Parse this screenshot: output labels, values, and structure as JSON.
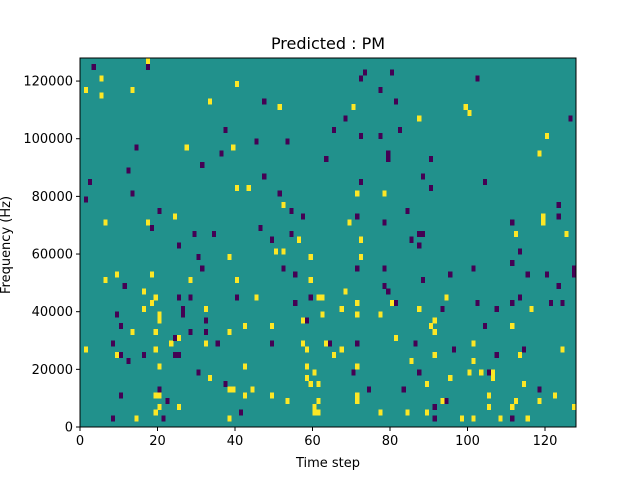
{
  "chart_data": {
    "type": "heatmap",
    "title": "Predicted : PM",
    "xlabel": "Time step",
    "ylabel": "Frequency (Hz)",
    "xlim": [
      0,
      128
    ],
    "ylim": [
      0,
      128000
    ],
    "xticks": [
      0,
      20,
      40,
      60,
      80,
      100,
      120
    ],
    "yticks": [
      0,
      20000,
      40000,
      60000,
      80000,
      100000,
      120000
    ],
    "grid": false,
    "legend": "none",
    "rows": 64,
    "cols": 128,
    "colors": {
      "background": "#21918c",
      "high": "#fde725",
      "low": "#440154"
    },
    "cells": {
      "high": [
        [
          1,
          58
        ],
        [
          1,
          13
        ],
        [
          5,
          60
        ],
        [
          5,
          57
        ],
        [
          6,
          35
        ],
        [
          6,
          25
        ],
        [
          9,
          26
        ],
        [
          9,
          12
        ],
        [
          13,
          58
        ],
        [
          13,
          16
        ],
        [
          14,
          1
        ],
        [
          16,
          23
        ],
        [
          16,
          20
        ],
        [
          17,
          63
        ],
        [
          17,
          35
        ],
        [
          18,
          26
        ],
        [
          18,
          21
        ],
        [
          19,
          2
        ],
        [
          19,
          5
        ],
        [
          19,
          13
        ],
        [
          19,
          16
        ],
        [
          19,
          22
        ],
        [
          20,
          5
        ],
        [
          20,
          3
        ],
        [
          20,
          10
        ],
        [
          20,
          18
        ],
        [
          20,
          19
        ],
        [
          23,
          14
        ],
        [
          24,
          36
        ],
        [
          25,
          3
        ],
        [
          25,
          15
        ],
        [
          27,
          48
        ],
        [
          28,
          25
        ],
        [
          32,
          14
        ],
        [
          32,
          20
        ],
        [
          33,
          56
        ],
        [
          33,
          8
        ],
        [
          38,
          16
        ],
        [
          38,
          1
        ],
        [
          38,
          6
        ],
        [
          38,
          29
        ],
        [
          39,
          6
        ],
        [
          39,
          48
        ],
        [
          40,
          25
        ],
        [
          40,
          41
        ],
        [
          40,
          59
        ],
        [
          42,
          10
        ],
        [
          42,
          17
        ],
        [
          42,
          5
        ],
        [
          43,
          41
        ],
        [
          44,
          6
        ],
        [
          44,
          6
        ],
        [
          45,
          22
        ],
        [
          49,
          17
        ],
        [
          49,
          5
        ],
        [
          50,
          30
        ],
        [
          51,
          55
        ],
        [
          52,
          38
        ],
        [
          52,
          30
        ],
        [
          53,
          4
        ],
        [
          56,
          32
        ],
        [
          57,
          18
        ],
        [
          57,
          14
        ],
        [
          58,
          13
        ],
        [
          58,
          10
        ],
        [
          58,
          8
        ],
        [
          59,
          7
        ],
        [
          59,
          25
        ],
        [
          59,
          29
        ],
        [
          60,
          3
        ],
        [
          60,
          2
        ],
        [
          60,
          9
        ],
        [
          61,
          4
        ],
        [
          61,
          22
        ],
        [
          61,
          7
        ],
        [
          61,
          2
        ],
        [
          61,
          4
        ],
        [
          62,
          22
        ],
        [
          62,
          19
        ],
        [
          63,
          14
        ],
        [
          65,
          12
        ],
        [
          67,
          13
        ],
        [
          67,
          20
        ],
        [
          68,
          23
        ],
        [
          69,
          35
        ],
        [
          70,
          55
        ],
        [
          71,
          10
        ],
        [
          71,
          19
        ],
        [
          71,
          21
        ],
        [
          71,
          4
        ],
        [
          71,
          5
        ],
        [
          71,
          10
        ],
        [
          71,
          40
        ],
        [
          72,
          42
        ],
        [
          72,
          29
        ],
        [
          72,
          32
        ],
        [
          77,
          2
        ],
        [
          77,
          19
        ],
        [
          78,
          40
        ],
        [
          80,
          21
        ],
        [
          81,
          15
        ],
        [
          84,
          2
        ],
        [
          85,
          11
        ],
        [
          87,
          20
        ],
        [
          87,
          53
        ],
        [
          89,
          7
        ],
        [
          89,
          2
        ],
        [
          90,
          17
        ],
        [
          91,
          16
        ],
        [
          91,
          18
        ],
        [
          91,
          12
        ],
        [
          93,
          4
        ],
        [
          94,
          22
        ],
        [
          95,
          8
        ],
        [
          98,
          1
        ],
        [
          99,
          55
        ],
        [
          100,
          54
        ],
        [
          100,
          9
        ],
        [
          101,
          11
        ],
        [
          101,
          14
        ],
        [
          101,
          1
        ],
        [
          103,
          9
        ],
        [
          105,
          5
        ],
        [
          105,
          3
        ],
        [
          106,
          8
        ],
        [
          106,
          9
        ],
        [
          107,
          12
        ],
        [
          108,
          1
        ],
        [
          111,
          3
        ],
        [
          111,
          17
        ],
        [
          112,
          4
        ],
        [
          112,
          33
        ],
        [
          113,
          12
        ],
        [
          114,
          7
        ],
        [
          115,
          1
        ],
        [
          116,
          20
        ],
        [
          118,
          4
        ],
        [
          118,
          47
        ],
        [
          119,
          35
        ],
        [
          119,
          36
        ],
        [
          120,
          50
        ],
        [
          122,
          5
        ],
        [
          124,
          13
        ],
        [
          125,
          33
        ],
        [
          127,
          3
        ],
        [
          127,
          3
        ]
      ],
      "low": [
        [
          1,
          39
        ],
        [
          2,
          42
        ],
        [
          3,
          62
        ],
        [
          8,
          1
        ],
        [
          8,
          14
        ],
        [
          9,
          19
        ],
        [
          10,
          5
        ],
        [
          10,
          12
        ],
        [
          10,
          17
        ],
        [
          11,
          24
        ],
        [
          12,
          11
        ],
        [
          12,
          44
        ],
        [
          13,
          40
        ],
        [
          14,
          48
        ],
        [
          16,
          12
        ],
        [
          17,
          62
        ],
        [
          18,
          34
        ],
        [
          20,
          6
        ],
        [
          20,
          37
        ],
        [
          21,
          1
        ],
        [
          22,
          4
        ],
        [
          24,
          12
        ],
        [
          24,
          15
        ],
        [
          25,
          12
        ],
        [
          25,
          31
        ],
        [
          25,
          22
        ],
        [
          26,
          20
        ],
        [
          26,
          20
        ],
        [
          26,
          19
        ],
        [
          28,
          16
        ],
        [
          28,
          22
        ],
        [
          29,
          33
        ],
        [
          30,
          9
        ],
        [
          30,
          29
        ],
        [
          31,
          45
        ],
        [
          31,
          27
        ],
        [
          32,
          18
        ],
        [
          32,
          16
        ],
        [
          34,
          33
        ],
        [
          35,
          14
        ],
        [
          36,
          47
        ],
        [
          37,
          7
        ],
        [
          37,
          51
        ],
        [
          40,
          22
        ],
        [
          41,
          2
        ],
        [
          45,
          49
        ],
        [
          46,
          34
        ],
        [
          47,
          56
        ],
        [
          47,
          43
        ],
        [
          49,
          32
        ],
        [
          49,
          14
        ],
        [
          51,
          40
        ],
        [
          52,
          27
        ],
        [
          53,
          49
        ],
        [
          54,
          37
        ],
        [
          54,
          33
        ],
        [
          55,
          21
        ],
        [
          55,
          26
        ],
        [
          57,
          36
        ],
        [
          58,
          18
        ],
        [
          59,
          22
        ],
        [
          63,
          46
        ],
        [
          64,
          14
        ],
        [
          65,
          51
        ],
        [
          68,
          53
        ],
        [
          70,
          9
        ],
        [
          71,
          14
        ],
        [
          71,
          27
        ],
        [
          71,
          36
        ],
        [
          72,
          50
        ],
        [
          72,
          60
        ],
        [
          72,
          42
        ],
        [
          73,
          61
        ],
        [
          74,
          6
        ],
        [
          77,
          58
        ],
        [
          77,
          50
        ],
        [
          78,
          35
        ],
        [
          78,
          24
        ],
        [
          78,
          27
        ],
        [
          79,
          47
        ],
        [
          79,
          46
        ],
        [
          79,
          23
        ],
        [
          80,
          61
        ],
        [
          81,
          21
        ],
        [
          81,
          56
        ],
        [
          82,
          51
        ],
        [
          83,
          6
        ],
        [
          84,
          37
        ],
        [
          85,
          32
        ],
        [
          86,
          14
        ],
        [
          87,
          33
        ],
        [
          87,
          31
        ],
        [
          87,
          9
        ],
        [
          88,
          43
        ],
        [
          88,
          33
        ],
        [
          88,
          25
        ],
        [
          90,
          41
        ],
        [
          90,
          46
        ],
        [
          90,
          41
        ],
        [
          91,
          3
        ],
        [
          91,
          1
        ],
        [
          93,
          20
        ],
        [
          94,
          4
        ],
        [
          95,
          26
        ],
        [
          96,
          13
        ],
        [
          101,
          27
        ],
        [
          102,
          60
        ],
        [
          102,
          21
        ],
        [
          104,
          42
        ],
        [
          104,
          17
        ],
        [
          105,
          9
        ],
        [
          107,
          20
        ],
        [
          107,
          12
        ],
        [
          111,
          35
        ],
        [
          111,
          21
        ],
        [
          111,
          1
        ],
        [
          111,
          28
        ],
        [
          113,
          30
        ],
        [
          113,
          22
        ],
        [
          114,
          13
        ],
        [
          115,
          26
        ],
        [
          118,
          6
        ],
        [
          120,
          26
        ],
        [
          121,
          21
        ],
        [
          123,
          38
        ],
        [
          123,
          24
        ],
        [
          123,
          36
        ],
        [
          124,
          21
        ],
        [
          126,
          53
        ],
        [
          127,
          26
        ],
        [
          127,
          27
        ]
      ]
    }
  }
}
